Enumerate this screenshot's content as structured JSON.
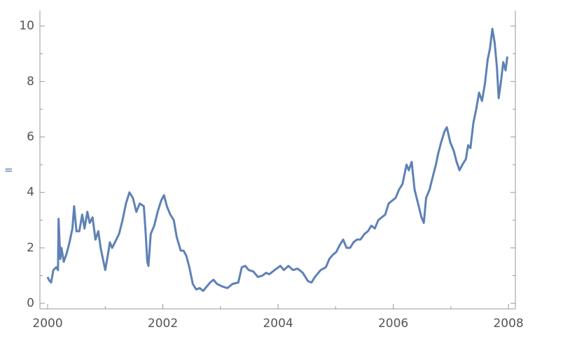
{
  "prompt_label": "=",
  "chart_data": {
    "type": "line",
    "x": [
      2000.0,
      2000.02,
      2000.06,
      2000.1,
      2000.15,
      2000.18,
      2000.19,
      2000.22,
      2000.24,
      2000.28,
      2000.33,
      2000.38,
      2000.43,
      2000.46,
      2000.5,
      2000.55,
      2000.6,
      2000.64,
      2000.69,
      2000.73,
      2000.78,
      2000.83,
      2000.88,
      2000.92,
      2000.97,
      2001.0,
      2001.05,
      2001.08,
      2001.12,
      2001.24,
      2001.3,
      2001.36,
      2001.42,
      2001.48,
      2001.54,
      2001.6,
      2001.67,
      2001.7,
      2001.73,
      2001.75,
      2001.79,
      2001.85,
      2001.91,
      2001.97,
      2002.02,
      2002.07,
      2002.13,
      2002.19,
      2002.24,
      2002.31,
      2002.36,
      2002.41,
      2002.46,
      2002.52,
      2002.58,
      2002.64,
      2002.7,
      2002.76,
      2002.82,
      2002.88,
      2002.94,
      2003.04,
      2003.12,
      2003.21,
      2003.31,
      2003.37,
      2003.43,
      2003.49,
      2003.57,
      2003.65,
      2003.73,
      2003.79,
      2003.85,
      2003.94,
      2004.04,
      2004.1,
      2004.18,
      2004.26,
      2004.34,
      2004.43,
      2004.52,
      2004.58,
      2004.64,
      2004.74,
      2004.83,
      2004.89,
      2004.95,
      2005.01,
      2005.07,
      2005.13,
      2005.19,
      2005.25,
      2005.31,
      2005.37,
      2005.43,
      2005.5,
      2005.56,
      2005.62,
      2005.68,
      2005.74,
      2005.8,
      2005.86,
      2005.92,
      2005.98,
      2006.04,
      2006.1,
      2006.16,
      2006.23,
      2006.27,
      2006.32,
      2006.37,
      2006.43,
      2006.49,
      2006.53,
      2006.57,
      2006.63,
      2006.69,
      2006.74,
      2006.78,
      2006.83,
      2006.89,
      2006.93,
      2006.99,
      2007.05,
      2007.1,
      2007.15,
      2007.2,
      2007.26,
      2007.3,
      2007.34,
      2007.39,
      2007.44,
      2007.49,
      2007.54,
      2007.59,
      2007.64,
      2007.68,
      2007.72,
      2007.76,
      2007.8,
      2007.83,
      2007.87,
      2007.91,
      2007.95,
      2007.98
    ],
    "series": [
      {
        "color": "#5e81b5",
        "values": [
          0.95,
          0.85,
          0.75,
          1.2,
          1.3,
          1.2,
          3.05,
          1.6,
          2.0,
          1.5,
          1.8,
          2.2,
          2.7,
          3.5,
          2.6,
          2.6,
          3.2,
          2.7,
          3.3,
          2.9,
          3.1,
          2.3,
          2.6,
          2.0,
          1.5,
          1.2,
          1.8,
          2.2,
          2.0,
          2.5,
          3.0,
          3.6,
          4.0,
          3.8,
          3.3,
          3.6,
          3.5,
          2.6,
          1.5,
          1.35,
          2.5,
          2.8,
          3.3,
          3.7,
          3.9,
          3.5,
          3.2,
          3.0,
          2.4,
          1.9,
          1.9,
          1.7,
          1.3,
          0.7,
          0.5,
          0.55,
          0.45,
          0.6,
          0.75,
          0.85,
          0.7,
          0.6,
          0.55,
          0.7,
          0.75,
          1.3,
          1.35,
          1.2,
          1.15,
          0.95,
          1.0,
          1.1,
          1.05,
          1.2,
          1.35,
          1.2,
          1.35,
          1.2,
          1.25,
          1.1,
          0.8,
          0.75,
          0.95,
          1.2,
          1.3,
          1.6,
          1.75,
          1.85,
          2.1,
          2.3,
          2.0,
          2.0,
          2.2,
          2.3,
          2.3,
          2.5,
          2.6,
          2.8,
          2.7,
          3.0,
          3.1,
          3.2,
          3.6,
          3.7,
          3.8,
          4.1,
          4.3,
          5.0,
          4.8,
          5.1,
          4.1,
          3.6,
          3.1,
          2.9,
          3.8,
          4.1,
          4.6,
          5.0,
          5.4,
          5.8,
          6.2,
          6.35,
          5.8,
          5.5,
          5.1,
          4.8,
          5.0,
          5.2,
          5.7,
          5.6,
          6.5,
          7.0,
          7.6,
          7.3,
          7.9,
          8.8,
          9.2,
          9.9,
          9.4,
          8.5,
          7.4,
          8.0,
          8.7,
          8.4,
          8.9
        ]
      }
    ],
    "xlim": [
      1999.866,
      2008.12
    ],
    "ylim": [
      -0.2,
      10.56
    ],
    "xticks": [
      2000,
      2002,
      2004,
      2006,
      2008
    ],
    "x_minor_ticks": [
      2001,
      2003,
      2005,
      2007
    ],
    "yticks": [
      0,
      2,
      4,
      6,
      8,
      10
    ],
    "y_minor_ticks": [
      1,
      3,
      5,
      7,
      9
    ],
    "grid": false
  }
}
